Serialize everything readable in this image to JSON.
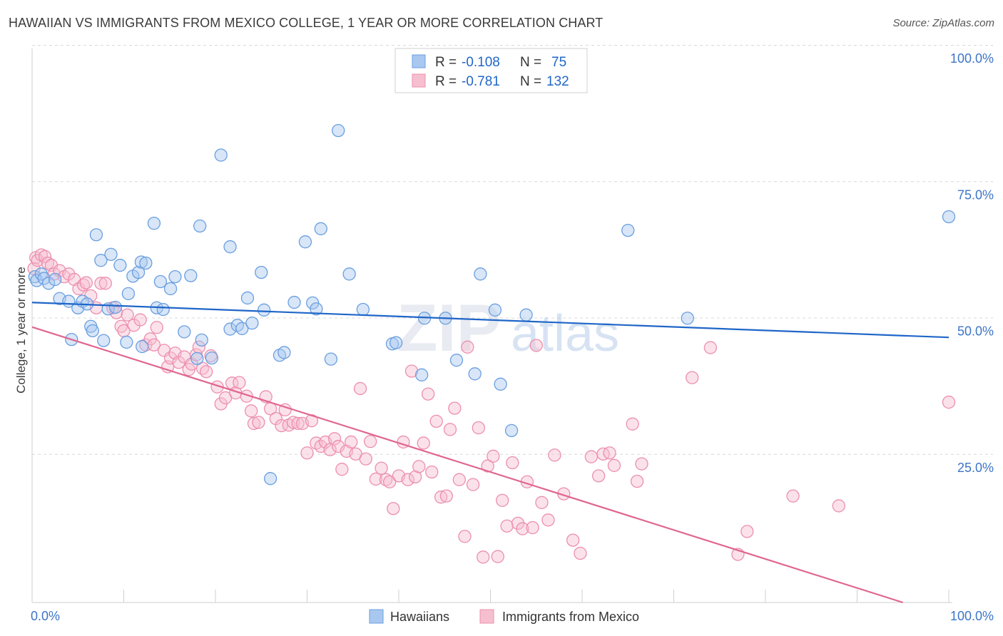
{
  "title": "HAWAIIAN VS IMMIGRANTS FROM MEXICO COLLEGE, 1 YEAR OR MORE CORRELATION CHART",
  "source": "Source: ZipAtlas.com",
  "watermark": {
    "part1": "ZIP",
    "part2": "atlas"
  },
  "colors": {
    "blue": "#1f66c8",
    "blue_fill": "#a9c8f0",
    "blue_stroke": "#6a9fe0",
    "pink": "#e0668f",
    "pink_fill": "#f6bfd0",
    "pink_stroke": "#ec8fae",
    "axis_text": "#3c75c8",
    "grid": "#d8d8d8"
  },
  "legend": {
    "rows": [
      {
        "r_label": "R =",
        "r_value": "-0.108",
        "n_label": "N =",
        "n_value": "75",
        "color": "blue"
      },
      {
        "r_label": "R =",
        "r_value": "-0.781",
        "n_label": "N =",
        "n_value": "132",
        "color": "pink"
      }
    ]
  },
  "bottom_legend": [
    "Hawaiians",
    "Immigrants from Mexico"
  ],
  "chart_data": {
    "type": "scatter",
    "title": "HAWAIIAN VS IMMIGRANTS FROM MEXICO COLLEGE, 1 YEAR OR MORE CORRELATION CHART",
    "xlabel": "",
    "ylabel": "College, 1 year or more",
    "xlim": [
      0,
      100
    ],
    "ylim": [
      0,
      100
    ],
    "x_tick_labels": [
      "0.0%",
      "100.0%"
    ],
    "y_ticks": [
      25,
      50,
      75,
      100
    ],
    "y_tick_labels": [
      "25.0%",
      "50.0%",
      "75.0%",
      "100.0%"
    ],
    "grid": true,
    "legend_position": "top-center",
    "series": [
      {
        "name": "Hawaiians",
        "color": "blue",
        "r": -0.108,
        "n": 75,
        "trend": {
          "x": [
            0,
            100
          ],
          "y": [
            55.0,
            48.6
          ]
        },
        "points": [
          [
            0.3,
            57.5
          ],
          [
            0.5,
            56.8
          ],
          [
            1.0,
            58.0
          ],
          [
            1.3,
            57.2
          ],
          [
            1.8,
            56.3
          ],
          [
            2.5,
            57.0
          ],
          [
            3.0,
            53.5
          ],
          [
            4.0,
            53.0
          ],
          [
            4.3,
            46.0
          ],
          [
            5.0,
            51.8
          ],
          [
            5.5,
            53.0
          ],
          [
            6.0,
            52.5
          ],
          [
            6.4,
            48.4
          ],
          [
            6.6,
            47.6
          ],
          [
            7.0,
            65.2
          ],
          [
            7.5,
            60.5
          ],
          [
            7.8,
            45.8
          ],
          [
            8.3,
            51.6
          ],
          [
            8.6,
            61.6
          ],
          [
            9.1,
            51.9
          ],
          [
            9.6,
            59.6
          ],
          [
            10.3,
            45.5
          ],
          [
            10.5,
            54.4
          ],
          [
            11.0,
            57.6
          ],
          [
            11.6,
            58.3
          ],
          [
            11.9,
            60.2
          ],
          [
            12.0,
            44.7
          ],
          [
            12.4,
            60.0
          ],
          [
            13.3,
            67.3
          ],
          [
            13.6,
            51.8
          ],
          [
            14.0,
            56.6
          ],
          [
            14.3,
            51.5
          ],
          [
            15.1,
            55.3
          ],
          [
            15.6,
            57.5
          ],
          [
            16.6,
            47.4
          ],
          [
            17.3,
            57.7
          ],
          [
            18.0,
            42.5
          ],
          [
            18.3,
            66.8
          ],
          [
            18.5,
            45.9
          ],
          [
            19.6,
            42.6
          ],
          [
            20.6,
            79.8
          ],
          [
            21.6,
            63.0
          ],
          [
            21.6,
            47.9
          ],
          [
            22.4,
            48.6
          ],
          [
            22.9,
            48.0
          ],
          [
            23.5,
            53.6
          ],
          [
            24.0,
            49.0
          ],
          [
            25.0,
            58.3
          ],
          [
            25.3,
            51.4
          ],
          [
            26.0,
            20.5
          ],
          [
            27.0,
            43.1
          ],
          [
            27.5,
            43.6
          ],
          [
            28.6,
            52.8
          ],
          [
            29.8,
            63.9
          ],
          [
            30.6,
            52.7
          ],
          [
            31.0,
            51.6
          ],
          [
            31.5,
            66.3
          ],
          [
            32.6,
            42.4
          ],
          [
            33.4,
            84.3
          ],
          [
            34.6,
            58.0
          ],
          [
            36.1,
            51.5
          ],
          [
            39.3,
            45.2
          ],
          [
            39.7,
            45.4
          ],
          [
            42.5,
            39.5
          ],
          [
            42.8,
            49.9
          ],
          [
            45.1,
            49.9
          ],
          [
            46.3,
            42.2
          ],
          [
            48.3,
            39.7
          ],
          [
            48.9,
            58.0
          ],
          [
            50.5,
            51.4
          ],
          [
            51.1,
            37.8
          ],
          [
            52.3,
            29.3
          ],
          [
            53.9,
            50.5
          ],
          [
            65.0,
            66.0
          ],
          [
            71.5,
            49.9
          ],
          [
            100.0,
            68.5
          ]
        ]
      },
      {
        "name": "Immigrants from Mexico",
        "color": "pink",
        "trend": {
          "x": [
            0,
            95
          ],
          "y": [
            50.5,
            0
          ]
        },
        "r": -0.781,
        "n": 132,
        "points": [
          [
            0.2,
            59.0
          ],
          [
            0.4,
            61.0
          ],
          [
            0.6,
            60.5
          ],
          [
            1.0,
            61.5
          ],
          [
            1.4,
            61.2
          ],
          [
            1.7,
            60.0
          ],
          [
            2.1,
            59.6
          ],
          [
            2.4,
            58.0
          ],
          [
            3.0,
            58.6
          ],
          [
            3.5,
            57.5
          ],
          [
            4.0,
            58.0
          ],
          [
            4.6,
            57.0
          ],
          [
            5.1,
            55.3
          ],
          [
            5.6,
            56.0
          ],
          [
            5.9,
            56.4
          ],
          [
            6.4,
            54.0
          ],
          [
            7.0,
            51.8
          ],
          [
            7.5,
            56.3
          ],
          [
            8.0,
            56.3
          ],
          [
            8.8,
            51.8
          ],
          [
            9.2,
            50.9
          ],
          [
            9.7,
            48.4
          ],
          [
            10.0,
            47.6
          ],
          [
            10.4,
            50.5
          ],
          [
            11.1,
            48.6
          ],
          [
            11.8,
            49.6
          ],
          [
            12.4,
            45.0
          ],
          [
            12.9,
            46.1
          ],
          [
            13.3,
            45.0
          ],
          [
            13.6,
            48.2
          ],
          [
            14.4,
            44.0
          ],
          [
            14.8,
            41.0
          ],
          [
            15.1,
            42.6
          ],
          [
            15.6,
            43.5
          ],
          [
            16.0,
            41.8
          ],
          [
            16.6,
            42.8
          ],
          [
            17.1,
            40.5
          ],
          [
            17.4,
            41.5
          ],
          [
            17.9,
            43.2
          ],
          [
            18.2,
            44.6
          ],
          [
            18.6,
            40.7
          ],
          [
            19.0,
            40.1
          ],
          [
            19.5,
            43.0
          ],
          [
            20.2,
            37.3
          ],
          [
            20.6,
            34.2
          ],
          [
            21.1,
            35.3
          ],
          [
            21.8,
            38.0
          ],
          [
            22.2,
            36.2
          ],
          [
            22.6,
            38.1
          ],
          [
            23.4,
            35.6
          ],
          [
            23.9,
            32.9
          ],
          [
            24.2,
            30.6
          ],
          [
            24.7,
            30.8
          ],
          [
            25.5,
            35.5
          ],
          [
            26.0,
            33.3
          ],
          [
            26.6,
            31.5
          ],
          [
            27.2,
            30.2
          ],
          [
            27.6,
            33.1
          ],
          [
            28.0,
            30.3
          ],
          [
            28.5,
            30.8
          ],
          [
            29.0,
            30.6
          ],
          [
            29.5,
            30.6
          ],
          [
            30.0,
            25.2
          ],
          [
            30.5,
            31.1
          ],
          [
            31.0,
            27.0
          ],
          [
            31.5,
            26.4
          ],
          [
            32.0,
            27.2
          ],
          [
            32.5,
            25.8
          ],
          [
            33.0,
            27.8
          ],
          [
            33.4,
            26.4
          ],
          [
            33.8,
            22.2
          ],
          [
            34.3,
            25.5
          ],
          [
            34.8,
            27.2
          ],
          [
            35.3,
            25.0
          ],
          [
            35.8,
            37.0
          ],
          [
            36.4,
            24.1
          ],
          [
            36.9,
            27.3
          ],
          [
            37.5,
            20.4
          ],
          [
            38.1,
            22.4
          ],
          [
            38.6,
            20.3
          ],
          [
            39.0,
            19.9
          ],
          [
            39.4,
            15.0
          ],
          [
            40.0,
            21.0
          ],
          [
            40.5,
            27.2
          ],
          [
            41.0,
            20.3
          ],
          [
            41.4,
            40.2
          ],
          [
            41.8,
            20.8
          ],
          [
            42.2,
            22.7
          ],
          [
            42.7,
            27.0
          ],
          [
            43.2,
            36.0
          ],
          [
            43.6,
            21.7
          ],
          [
            44.1,
            31.0
          ],
          [
            44.6,
            17.1
          ],
          [
            45.2,
            17.3
          ],
          [
            45.6,
            29.5
          ],
          [
            46.1,
            33.4
          ],
          [
            46.6,
            20.3
          ],
          [
            47.2,
            9.9
          ],
          [
            47.5,
            44.6
          ],
          [
            48.1,
            19.4
          ],
          [
            48.7,
            29.8
          ],
          [
            49.2,
            6.1
          ],
          [
            49.7,
            22.8
          ],
          [
            50.3,
            24.6
          ],
          [
            50.8,
            6.2
          ],
          [
            51.3,
            16.5
          ],
          [
            51.8,
            11.8
          ],
          [
            52.4,
            23.4
          ],
          [
            53.0,
            12.3
          ],
          [
            53.5,
            11.3
          ],
          [
            54.0,
            19.9
          ],
          [
            54.6,
            11.5
          ],
          [
            55.0,
            44.9
          ],
          [
            55.6,
            16.1
          ],
          [
            56.3,
            12.9
          ],
          [
            57.0,
            24.8
          ],
          [
            58.0,
            17.7
          ],
          [
            59.0,
            9.2
          ],
          [
            59.8,
            6.8
          ],
          [
            61.0,
            24.5
          ],
          [
            61.8,
            21.0
          ],
          [
            62.3,
            25.0
          ],
          [
            63.0,
            25.2
          ],
          [
            63.5,
            22.9
          ],
          [
            65.5,
            30.5
          ],
          [
            66.0,
            20.0
          ],
          [
            66.5,
            23.2
          ],
          [
            72.0,
            39.0
          ],
          [
            74.0,
            44.5
          ],
          [
            77.0,
            6.6
          ],
          [
            78.0,
            10.8
          ],
          [
            83.0,
            17.3
          ],
          [
            88.0,
            15.5
          ],
          [
            100.0,
            34.5
          ]
        ]
      }
    ]
  }
}
